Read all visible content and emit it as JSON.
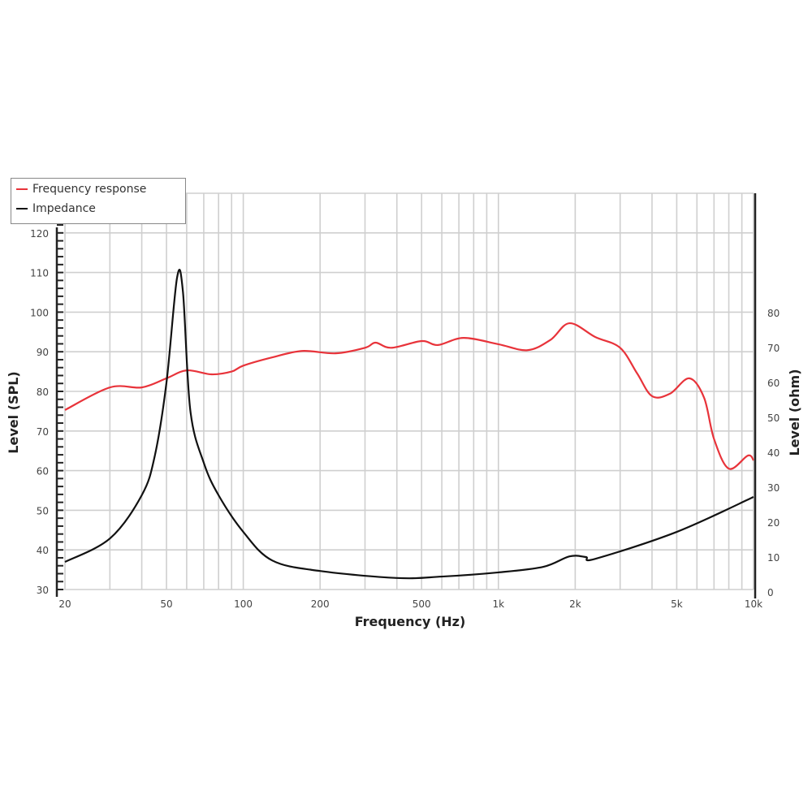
{
  "chart_data": {
    "type": "line",
    "xlabel": "Frequency (Hz)",
    "ylabel": "Level (SPL)",
    "y2label": "Level (ohm)",
    "xscale": "log",
    "xlim": [
      20,
      10000
    ],
    "ylim": [
      30,
      130
    ],
    "y2lim": [
      0,
      90
    ],
    "x_ticks": [
      {
        "v": 20,
        "label": "20"
      },
      {
        "v": 50,
        "label": "50"
      },
      {
        "v": 100,
        "label": "100"
      },
      {
        "v": 200,
        "label": "200"
      },
      {
        "v": 500,
        "label": "500"
      },
      {
        "v": 1000,
        "label": "1k"
      },
      {
        "v": 2000,
        "label": "2k"
      },
      {
        "v": 5000,
        "label": "5k"
      },
      {
        "v": 10000,
        "label": "10k"
      }
    ],
    "y_ticks": [
      30,
      40,
      50,
      60,
      70,
      80,
      90,
      100,
      110,
      120
    ],
    "y2_ticks": [
      0,
      10,
      20,
      30,
      40,
      50,
      60,
      70,
      80
    ],
    "grid": true,
    "legend_position": "top-left",
    "series": [
      {
        "name": "Frequency response",
        "axis": "left",
        "color": "#e8333a",
        "x": [
          20,
          30,
          40,
          50,
          60,
          75,
          90,
          100,
          130,
          170,
          230,
          300,
          330,
          380,
          500,
          580,
          730,
          1000,
          1300,
          1600,
          1900,
          2400,
          3000,
          3500,
          4000,
          4700,
          5600,
          6400,
          7000,
          8000,
          9500,
          10000
        ],
        "y": [
          75.3,
          81,
          81,
          83.3,
          85.3,
          84.3,
          85,
          86.5,
          88.6,
          90.2,
          89.6,
          91,
          92.3,
          91,
          92.7,
          91.7,
          93.5,
          91.9,
          90.4,
          93,
          97.2,
          93.7,
          91,
          84.5,
          78.8,
          79.4,
          83.3,
          78.4,
          68,
          60.5,
          63.8,
          62.6
        ]
      },
      {
        "name": "Impedance",
        "axis": "right",
        "color": "#111111",
        "x": [
          20,
          30,
          40,
          45,
          50,
          55,
          58,
          62,
          70,
          80,
          100,
          130,
          200,
          400,
          600,
          1000,
          1500,
          1900,
          2200,
          2400,
          5000,
          10000
        ],
        "y": [
          8.6,
          15.3,
          27.7,
          39,
          60,
          90,
          86,
          52,
          37,
          27.7,
          17.2,
          9,
          6,
          4,
          4.4,
          5.6,
          7.2,
          10.2,
          10,
          9.5,
          17.2,
          27.2
        ]
      }
    ]
  }
}
